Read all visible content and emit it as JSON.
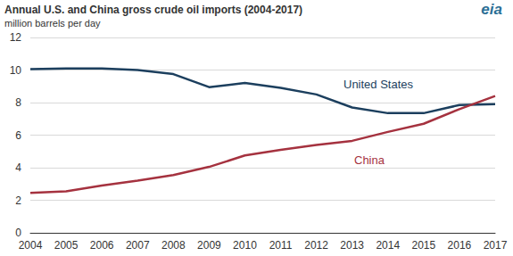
{
  "chart_data": {
    "type": "line",
    "title": "Annual U.S. and China gross crude oil imports (2004-2017)",
    "subtitle": "million barrels per day",
    "categories": [
      "2004",
      "2005",
      "2006",
      "2007",
      "2008",
      "2009",
      "2010",
      "2011",
      "2012",
      "2013",
      "2014",
      "2015",
      "2016",
      "2017"
    ],
    "series": [
      {
        "name": "United States",
        "color": "#1c3f5e",
        "values": [
          10.05,
          10.1,
          10.1,
          10.0,
          9.75,
          8.95,
          9.2,
          8.9,
          8.5,
          7.7,
          7.35,
          7.35,
          7.85,
          7.9
        ]
      },
      {
        "name": "China",
        "color": "#a5323f",
        "values": [
          2.45,
          2.55,
          2.9,
          3.2,
          3.55,
          4.05,
          4.75,
          5.1,
          5.4,
          5.65,
          6.2,
          6.7,
          7.6,
          8.4
        ]
      }
    ],
    "ylim": [
      0,
      12
    ],
    "yticks": [
      0,
      2,
      4,
      6,
      8,
      10,
      12
    ],
    "grid": true,
    "annotations": [
      {
        "text": "eia"
      }
    ]
  }
}
